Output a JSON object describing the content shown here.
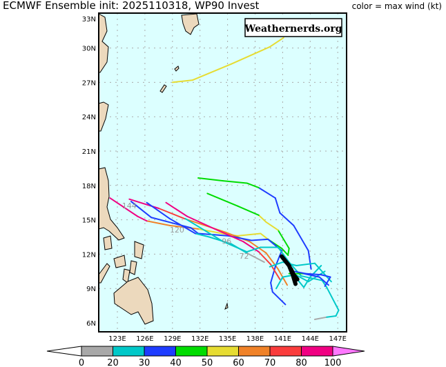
{
  "header": {
    "title": "ECMWF Ensemble  init: 2025110318, WP90 Invest",
    "legend_title": "color = max wind (kt)",
    "watermark": "Weathernerds.org"
  },
  "map": {
    "lon_range": [
      121,
      148
    ],
    "lat_range": [
      6,
      33
    ],
    "lat_labels": [
      "6N",
      "9N",
      "12N",
      "15N",
      "18N",
      "21N",
      "24N",
      "27N",
      "30N",
      "33N"
    ],
    "lat_values": [
      6,
      9,
      12,
      15,
      18,
      21,
      24,
      27,
      30,
      33
    ],
    "lon_labels": [
      "123E",
      "126E",
      "129E",
      "132E",
      "135E",
      "138E",
      "141E",
      "144E",
      "147E"
    ],
    "lon_values": [
      123,
      126,
      129,
      132,
      135,
      138,
      141,
      144,
      147
    ],
    "ocean_color": "#dcffff",
    "land_color": "#ecd9bd"
  },
  "colorbar": {
    "ticks": [
      "0",
      "20",
      "30",
      "40",
      "50",
      "60",
      "70",
      "80",
      "100"
    ],
    "bins": [
      {
        "min": 0,
        "max": 20,
        "color": "#a8a8a8"
      },
      {
        "min": 20,
        "max": 30,
        "color": "#00c8c8"
      },
      {
        "min": 30,
        "max": 40,
        "color": "#1e3cff"
      },
      {
        "min": 40,
        "max": 50,
        "color": "#00dc00"
      },
      {
        "min": 50,
        "max": 60,
        "color": "#e6dc32"
      },
      {
        "min": 60,
        "max": 70,
        "color": "#f08228"
      },
      {
        "min": 70,
        "max": 80,
        "color": "#fa3c3c"
      },
      {
        "min": 80,
        "max": 100,
        "color": "#f00082"
      }
    ],
    "low_color": "#ffffff",
    "high_color": "#ff78ff"
  },
  "hour_labels": [
    {
      "text": "144",
      "lon": 124.3,
      "lat": 16.0
    },
    {
      "text": "120",
      "lon": 129.5,
      "lat": 13.9
    },
    {
      "text": "96",
      "lon": 134.9,
      "lat": 12.9
    },
    {
      "text": "72",
      "lon": 136.8,
      "lat": 11.6
    }
  ],
  "tracks": [
    [
      [
        129.0,
        27.0,
        45
      ],
      [
        131.2,
        27.2,
        55
      ],
      [
        135.4,
        28.6,
        55
      ],
      [
        139.6,
        30.1,
        55
      ],
      [
        141.1,
        30.9,
        55
      ]
    ],
    [
      [
        144.1,
        10.7,
        35
      ],
      [
        143.8,
        12.3,
        35
      ],
      [
        142.2,
        14.5,
        35
      ],
      [
        140.7,
        15.6,
        35
      ],
      [
        140.2,
        16.9,
        35
      ],
      [
        138.4,
        17.8,
        35
      ],
      [
        137.1,
        18.2,
        45
      ],
      [
        134.5,
        18.4,
        45
      ],
      [
        131.8,
        18.65,
        45
      ]
    ],
    [
      [
        141.6,
        12.0,
        45
      ],
      [
        141.7,
        12.5,
        45
      ],
      [
        140.5,
        14.1,
        45
      ],
      [
        139.2,
        14.8,
        55
      ],
      [
        138.4,
        15.4,
        55
      ],
      [
        136.1,
        16.2,
        45
      ],
      [
        132.8,
        17.3,
        45
      ]
    ],
    [
      [
        141.6,
        11.9,
        45
      ],
      [
        140.9,
        12.5,
        45
      ],
      [
        139.4,
        13.3,
        45
      ],
      [
        138.6,
        13.8,
        55
      ],
      [
        136.1,
        13.6,
        55
      ],
      [
        135.1,
        13.7,
        55
      ],
      [
        131.8,
        14.2,
        55
      ],
      [
        128.7,
        14.5,
        65
      ],
      [
        126.2,
        14.9,
        65
      ],
      [
        125.2,
        15.3,
        85
      ],
      [
        122.2,
        16.9,
        85
      ]
    ],
    [
      [
        141.5,
        9.3,
        55
      ],
      [
        140.5,
        10.7,
        65
      ],
      [
        139.2,
        12.1,
        65
      ],
      [
        137.4,
        13.1,
        65
      ],
      [
        134.8,
        13.9,
        65
      ],
      [
        130.3,
        15.1,
        65
      ],
      [
        127.5,
        16.0,
        75
      ],
      [
        124.3,
        16.8,
        85
      ]
    ],
    [
      [
        141.3,
        7.6,
        35
      ],
      [
        139.9,
        8.7,
        35
      ],
      [
        139.7,
        9.5,
        35
      ],
      [
        140.2,
        10.9,
        35
      ],
      [
        140.9,
        12.3,
        35
      ],
      [
        139.4,
        13.3,
        35
      ],
      [
        137.6,
        13.2,
        35
      ],
      [
        135.1,
        13.6,
        35
      ],
      [
        131.8,
        13.8,
        35
      ],
      [
        131.0,
        14.3,
        35
      ],
      [
        126.7,
        15.2,
        35
      ],
      [
        124.5,
        16.6,
        35
      ]
    ],
    [
      [
        139.0,
        11.3,
        15
      ],
      [
        137.1,
        12.1,
        15
      ],
      [
        135.4,
        12.9,
        25
      ],
      [
        133.0,
        13.5,
        25
      ],
      [
        131.5,
        13.8,
        25
      ],
      [
        128.7,
        15.1,
        35
      ],
      [
        126.2,
        16.5,
        35
      ]
    ],
    [
      [
        140.7,
        9.8,
        75
      ],
      [
        139.7,
        11.1,
        75
      ],
      [
        138.4,
        12.2,
        75
      ],
      [
        136.7,
        13.1,
        90
      ],
      [
        133.6,
        14.2,
        90
      ],
      [
        130.6,
        15.3,
        85
      ],
      [
        128.3,
        16.5,
        85
      ]
    ],
    [
      [
        144.5,
        6.3,
        15
      ],
      [
        145.8,
        6.5,
        15
      ],
      [
        146.8,
        6.6,
        25
      ],
      [
        147.1,
        7.1,
        25
      ],
      [
        145.8,
        9.1,
        25
      ],
      [
        145.3,
        9.7,
        25
      ],
      [
        143.0,
        10.1,
        25
      ],
      [
        141.7,
        11.3,
        25
      ],
      [
        140.5,
        12.6,
        25
      ],
      [
        138.6,
        12.6,
        25
      ],
      [
        137.1,
        12.2,
        25
      ],
      [
        134.5,
        13.1,
        25
      ],
      [
        130.4,
        15.1,
        25
      ]
    ],
    [
      [
        139.6,
        10.9,
        25
      ],
      [
        141.0,
        11.3,
        25
      ],
      [
        142.5,
        11.0,
        25
      ],
      [
        144.5,
        11.2,
        25
      ],
      [
        145.5,
        10.3,
        25
      ],
      [
        146.3,
        9.6,
        25
      ]
    ],
    [
      [
        141.3,
        11.5,
        25
      ],
      [
        142.0,
        10.4,
        25
      ],
      [
        143.3,
        9.1,
        25
      ],
      [
        144.0,
        10.0,
        25
      ],
      [
        145.2,
        11.0,
        25
      ]
    ],
    [
      [
        140.3,
        9.0,
        25
      ],
      [
        141.0,
        10.0,
        25
      ],
      [
        142.4,
        10.2,
        25
      ],
      [
        143.8,
        9.6,
        25
      ],
      [
        145.6,
        10.5,
        25
      ]
    ],
    [
      [
        141.7,
        10.3,
        45
      ],
      [
        143.3,
        10.3,
        45
      ],
      [
        145.0,
        10.0,
        35
      ],
      [
        146.0,
        9.3,
        35
      ]
    ],
    [
      [
        142.2,
        10.5,
        35
      ],
      [
        143.5,
        10.3,
        35
      ],
      [
        145.2,
        10.2,
        35
      ],
      [
        146.2,
        10.0,
        35
      ],
      [
        145.6,
        9.2,
        35
      ]
    ]
  ],
  "observed_tracks": [
    [
      [
        140.9,
        11.8
      ],
      [
        141.7,
        11.0
      ],
      [
        142.1,
        10.2
      ],
      [
        142.4,
        9.4
      ]
    ],
    [
      [
        141.9,
        10.7
      ],
      [
        142.2,
        10.2
      ],
      [
        142.6,
        9.8
      ]
    ]
  ]
}
